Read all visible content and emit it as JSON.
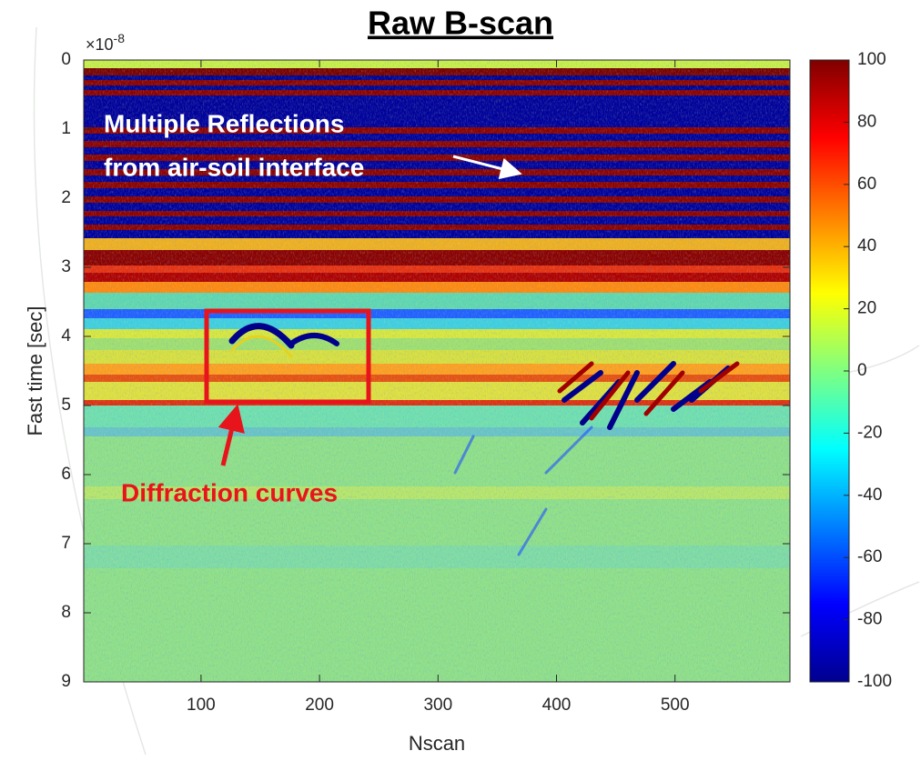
{
  "chart_data": {
    "type": "image",
    "title": "Raw B-scan",
    "xlabel": "Nscan",
    "ylabel": "Fast time [sec]",
    "y_scale_label": {
      "base": "×10",
      "exponent": "-8"
    },
    "xlim": [
      1,
      597
    ],
    "xticks": [
      100,
      200,
      300,
      400,
      500
    ],
    "ylim": [
      0,
      9
    ],
    "yticks": [
      0,
      1,
      2,
      3,
      4,
      5,
      6,
      7,
      8,
      9
    ],
    "y_reversed": true,
    "colormap": "jet",
    "clim": [
      -100,
      100
    ],
    "cticks": [
      100,
      80,
      60,
      40,
      20,
      0,
      -20,
      -40,
      -60,
      -80,
      -100
    ],
    "annotations": [
      "Multiple Reflections",
      "from air-soil interface",
      "Diffraction curves"
    ]
  }
}
